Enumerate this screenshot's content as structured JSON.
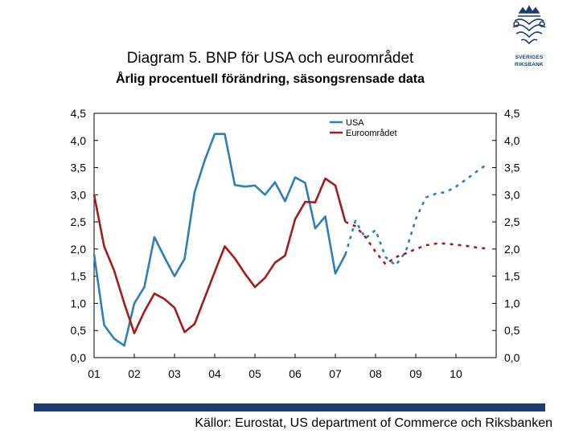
{
  "header": {
    "title": "Diagram 5. BNP för USA och euroområdet",
    "subtitle": "Årlig procentuell förändring, säsongsrensade data"
  },
  "logo": {
    "line1": "SVERIGES",
    "line2": "RIKSBANK"
  },
  "footer": {
    "source": "Källor: Eurostat, US department of Commerce och Riksbanken"
  },
  "colors": {
    "usa": "#2e7fb8",
    "euro": "#a11d1d",
    "brand": "#1d3b70"
  },
  "chart_data": {
    "type": "line",
    "title": "Diagram 5. BNP för USA och euroområdet",
    "subtitle": "Årlig procentuell förändring, säsongsrensade data",
    "xlabel": "",
    "ylabel": "",
    "x_ticks": [
      "01",
      "02",
      "03",
      "04",
      "05",
      "06",
      "07",
      "08",
      "09",
      "10"
    ],
    "x_range": [
      2001.0,
      2011.0
    ],
    "ylim": [
      0,
      4.5
    ],
    "y_ticks": [
      "0,0",
      "0,5",
      "1,0",
      "1,5",
      "2,0",
      "2,5",
      "3,0",
      "3,5",
      "4,0",
      "4,5"
    ],
    "grid": false,
    "legend": "top-right",
    "series": [
      {
        "name": "USA",
        "color": "#2e7fb8",
        "x": [
          2001.0,
          2001.25,
          2001.5,
          2001.75,
          2002.0,
          2002.25,
          2002.5,
          2002.75,
          2003.0,
          2003.25,
          2003.5,
          2003.75,
          2004.0,
          2004.25,
          2004.5,
          2004.75,
          2005.0,
          2005.25,
          2005.5,
          2005.75,
          2006.0,
          2006.25,
          2006.5,
          2006.75,
          2007.0,
          2007.25
        ],
        "values": [
          1.9,
          0.6,
          0.35,
          0.22,
          1.0,
          1.3,
          2.22,
          1.85,
          1.5,
          1.82,
          3.05,
          3.63,
          4.12,
          4.12,
          3.18,
          3.15,
          3.17,
          3.0,
          3.23,
          2.88,
          3.32,
          3.22,
          2.38,
          2.6,
          1.55,
          1.9
        ]
      },
      {
        "name": "Euroområdet",
        "color": "#a11d1d",
        "x": [
          2001.0,
          2001.25,
          2001.5,
          2001.75,
          2002.0,
          2002.25,
          2002.5,
          2002.75,
          2003.0,
          2003.25,
          2003.5,
          2003.75,
          2004.0,
          2004.25,
          2004.5,
          2004.75,
          2005.0,
          2005.25,
          2005.5,
          2005.75,
          2006.0,
          2006.25,
          2006.5,
          2006.75,
          2007.0,
          2007.25
        ],
        "values": [
          3.0,
          2.05,
          1.6,
          1.0,
          0.45,
          0.85,
          1.18,
          1.08,
          0.92,
          0.47,
          0.62,
          1.1,
          1.58,
          2.05,
          1.83,
          1.55,
          1.3,
          1.47,
          1.75,
          1.88,
          2.55,
          2.87,
          2.86,
          3.3,
          3.17,
          2.5
        ]
      },
      {
        "name": "USA",
        "forecast": true,
        "color": "#2e7fb8",
        "x": [
          2007.25,
          2007.5,
          2007.75,
          2008.0,
          2008.25,
          2008.5,
          2008.75,
          2009.0,
          2009.25,
          2009.5,
          2009.75,
          2010.0,
          2010.25,
          2010.5,
          2010.75
        ],
        "values": [
          1.9,
          2.52,
          2.2,
          2.35,
          1.85,
          1.7,
          1.95,
          2.55,
          2.95,
          3.02,
          3.05,
          3.15,
          3.28,
          3.42,
          3.55
        ]
      },
      {
        "name": "Euroområdet",
        "forecast": true,
        "color": "#a11d1d",
        "x": [
          2007.25,
          2007.5,
          2007.75,
          2008.0,
          2008.25,
          2008.5,
          2008.75,
          2009.0,
          2009.25,
          2009.5,
          2009.75,
          2010.0,
          2010.25,
          2010.5,
          2010.75
        ],
        "values": [
          2.5,
          2.42,
          2.22,
          1.95,
          1.72,
          1.85,
          1.92,
          2.0,
          2.07,
          2.1,
          2.1,
          2.08,
          2.06,
          2.03,
          2.01
        ]
      }
    ]
  }
}
